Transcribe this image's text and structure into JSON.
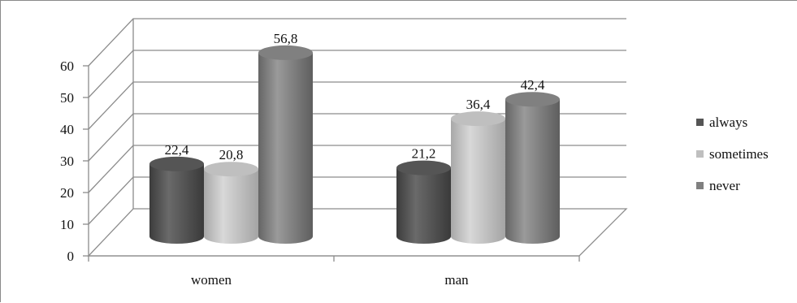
{
  "chart_data": {
    "type": "bar",
    "categories": [
      "women",
      "man"
    ],
    "series": [
      {
        "name": "always",
        "values": [
          22.4,
          21.2
        ],
        "labels": [
          "22,4",
          "21,2"
        ],
        "color": "#555555"
      },
      {
        "name": "sometimes",
        "values": [
          20.8,
          36.4
        ],
        "labels": [
          "20,8",
          "36,4"
        ],
        "color": "#bfbfbf"
      },
      {
        "name": "never",
        "values": [
          56.8,
          42.4
        ],
        "labels": [
          "56,8",
          "42,4"
        ],
        "color": "#808080"
      }
    ],
    "title": "",
    "xlabel": "",
    "ylabel": "",
    "ylim": [
      0,
      60
    ],
    "yticks": [
      "0",
      "10",
      "20",
      "30",
      "40",
      "50",
      "60"
    ],
    "grid": true,
    "legend_position": "right",
    "style": "3d-cylinder"
  }
}
